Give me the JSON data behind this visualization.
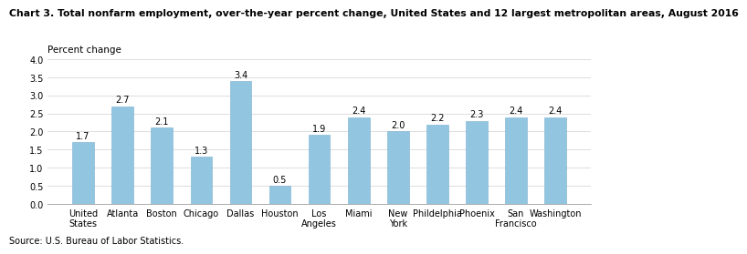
{
  "title": "Chart 3. Total nonfarm employment, over-the-year percent change, United States and 12 largest metropolitan areas, August 2016",
  "ylabel": "Percent change",
  "source": "Source: U.S. Bureau of Labor Statistics.",
  "categories": [
    "United\nStates",
    "Atlanta",
    "Boston",
    "Chicago",
    "Dallas",
    "Houston",
    "Los\nAngeles",
    "Miami",
    "New\nYork",
    "Phildelphia",
    "Phoenix",
    "San\nFrancisco",
    "Washington"
  ],
  "values": [
    1.7,
    2.7,
    2.1,
    1.3,
    3.4,
    0.5,
    1.9,
    2.4,
    2.0,
    2.2,
    2.3,
    2.4,
    2.4
  ],
  "bar_color": "#92c5e0",
  "bar_edge_color": "#7ab0d0",
  "ylim": [
    0,
    4.0
  ],
  "yticks": [
    0.0,
    0.5,
    1.0,
    1.5,
    2.0,
    2.5,
    3.0,
    3.5,
    4.0
  ],
  "title_fontsize": 7.8,
  "label_fontsize": 7.5,
  "tick_fontsize": 7.0,
  "source_fontsize": 7.0,
  "value_fontsize": 7.0,
  "bar_width": 0.55
}
